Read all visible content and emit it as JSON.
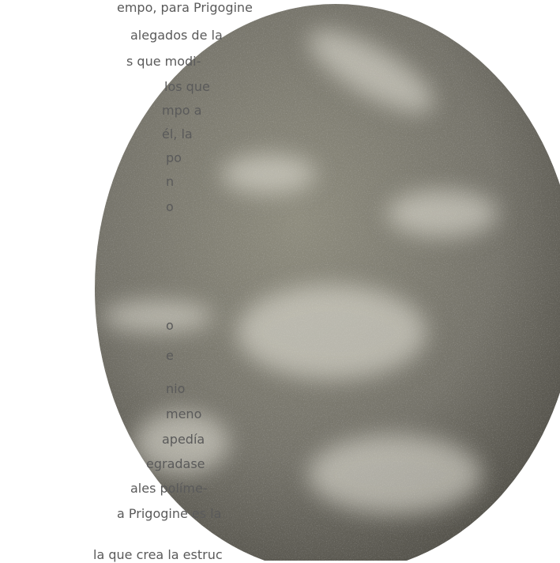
{
  "text_lines": [
    "empo, para Prigogine",
    "alegados de la",
    "s que modi-",
    "los que",
    "mpo a",
    "él, la",
    "po",
    "n",
    "o",
    "o",
    "e",
    "nio",
    "meno",
    "apedía",
    "egradase",
    "ales políme-",
    "a Prigogine es la",
    "la que crea la estruc"
  ]
}
